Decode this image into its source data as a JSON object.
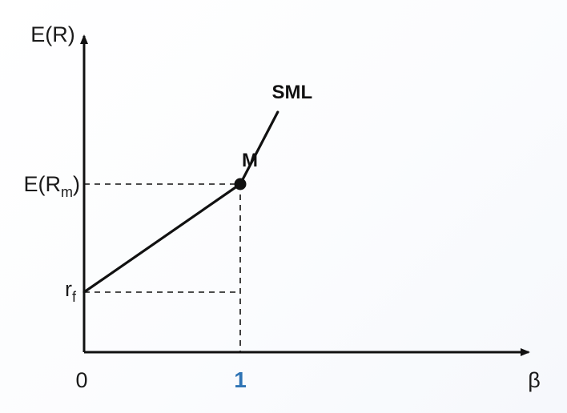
{
  "colors": {
    "line": "#111111",
    "guide": "#111111",
    "tick_highlight": "#2f74b5"
  },
  "chart_data": {
    "type": "line",
    "axes": {
      "y_label": "E(R)",
      "x_label": "β",
      "origin_label": "0"
    },
    "y_ticks": {
      "market_return": {
        "base": "E(R",
        "sub": "m",
        "close": ")"
      },
      "risk_free": {
        "base": "r",
        "sub": "f"
      }
    },
    "x_ticks": {
      "market_beta": "1"
    },
    "xlim": [
      0,
      2.8
    ],
    "ylim": [
      0,
      2.9
    ],
    "risk_free_rate": 0.5,
    "market_return": 1.4,
    "series": [
      {
        "name": "SML",
        "points": [
          [
            0,
            0.5
          ],
          [
            1,
            1.4
          ],
          [
            1.24,
            2.0
          ]
        ]
      }
    ],
    "market_point": {
      "label": "M",
      "x": 1,
      "y": 1.4
    },
    "grid": false,
    "legend": "none"
  }
}
